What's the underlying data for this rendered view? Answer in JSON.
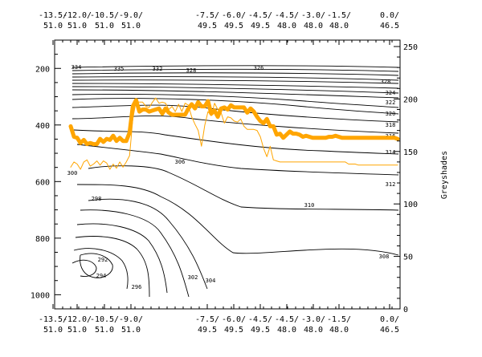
{
  "chart_data": {
    "type": "line",
    "title": "",
    "top_ticks": [
      {
        "lon": "-13.5/",
        "lat": "51.0"
      },
      {
        "lon": "-12.0/",
        "lat": "51.0"
      },
      {
        "lon": "-10.5/",
        "lat": "51.0"
      },
      {
        "lon": "-9.0/",
        "lat": "51.0"
      },
      {
        "lon": "-7.5/",
        "lat": "49.5"
      },
      {
        "lon": "-6.0/",
        "lat": "49.5"
      },
      {
        "lon": "-4.5/",
        "lat": "49.5"
      },
      {
        "lon": "-4.5/",
        "lat": "48.0"
      },
      {
        "lon": "-3.0/",
        "lat": "48.0"
      },
      {
        "lon": "-1.5/",
        "lat": "48.0"
      },
      {
        "lon": "0.0/",
        "lat": "46.5"
      }
    ],
    "bottom_ticks": [
      {
        "lon": "-13.5/",
        "lat": "51.0"
      },
      {
        "lon": "-12.0/",
        "lat": "51.0"
      },
      {
        "lon": "-10.5/",
        "lat": "51.0"
      },
      {
        "lon": "-9.0/",
        "lat": "51.0"
      },
      {
        "lon": "-7.5/",
        "lat": "49.5"
      },
      {
        "lon": "-6.0/",
        "lat": "49.5"
      },
      {
        "lon": "-4.5/",
        "lat": "49.5"
      },
      {
        "lon": "-4.5/",
        "lat": "48.0"
      },
      {
        "lon": "-3.0/",
        "lat": "48.0"
      },
      {
        "lon": "-1.5/",
        "lat": "48.0"
      },
      {
        "lon": "0.0/",
        "lat": "46.5"
      }
    ],
    "left_axis": {
      "ticks": [
        "200",
        "400",
        "600",
        "800",
        "1000"
      ],
      "range": [
        100,
        1050
      ],
      "label": ""
    },
    "right_axis": {
      "ticks": [
        "0",
        "50",
        "100",
        "150",
        "200",
        "250"
      ],
      "range": [
        0,
        250
      ],
      "label": "Greyshades"
    },
    "colors": {
      "thick_line": "#FFA500",
      "thin_line": "#FFA500",
      "contours": "#000000"
    },
    "contour_labels": [
      "292",
      "294",
      "296",
      "298",
      "300",
      "302",
      "304",
      "306",
      "308",
      "310",
      "312",
      "314",
      "316",
      "318",
      "320",
      "322",
      "324",
      "326",
      "328",
      "332",
      "334",
      "335"
    ],
    "series": [
      {
        "style": "thick",
        "x": [
          0,
          1,
          2,
          3,
          4,
          5,
          6,
          7,
          8,
          9,
          10,
          11,
          12,
          13,
          14,
          15,
          16,
          17,
          18,
          19,
          20,
          21,
          22,
          23,
          24,
          25,
          26,
          27,
          28,
          29,
          30,
          31,
          32,
          33,
          34,
          35,
          36,
          37,
          38,
          39,
          40,
          41,
          42,
          43,
          44,
          45,
          46,
          47,
          48,
          49,
          50,
          51,
          52,
          53,
          54,
          55,
          56,
          57,
          58,
          59,
          60,
          61,
          62,
          63,
          64,
          65,
          66,
          67,
          68,
          69,
          70,
          71,
          72,
          73,
          74,
          75,
          76,
          77,
          78,
          79,
          80,
          81,
          82,
          83,
          84,
          85,
          86,
          87,
          88,
          89,
          90,
          91,
          92,
          93,
          94,
          95,
          96,
          97,
          98,
          99,
          100
        ],
        "values": [
          174,
          164,
          163,
          158,
          161,
          157,
          158,
          157,
          157,
          162,
          159,
          162,
          161,
          165,
          160,
          163,
          160,
          160,
          168,
          193,
          199,
          188,
          190,
          190,
          188,
          189,
          190,
          191,
          186,
          191,
          187,
          185,
          185,
          185,
          185,
          185,
          191,
          195,
          191,
          197,
          193,
          193,
          198,
          186,
          189,
          183,
          191,
          192,
          190,
          194,
          192,
          192,
          192,
          192,
          187,
          191,
          188,
          183,
          179,
          177,
          181,
          174,
          174,
          166,
          167,
          163,
          166,
          169,
          167,
          167,
          166,
          164,
          165,
          164,
          163,
          163,
          163,
          163,
          163,
          164,
          164,
          165,
          164,
          163,
          163,
          163,
          163,
          163,
          163,
          163,
          163,
          163,
          163,
          163,
          163,
          163,
          163,
          163,
          163,
          163,
          162
        ]
      },
      {
        "style": "thin",
        "x": [
          0,
          1,
          2,
          3,
          4,
          5,
          6,
          7,
          8,
          9,
          10,
          11,
          12,
          13,
          14,
          15,
          16,
          17,
          18,
          19,
          20,
          21,
          22,
          23,
          24,
          25,
          26,
          27,
          28,
          29,
          30,
          31,
          32,
          33,
          34,
          35,
          36,
          37,
          38,
          39,
          40,
          41,
          42,
          43,
          44,
          45,
          46,
          47,
          48,
          49,
          50,
          51,
          52,
          53,
          54,
          55,
          56,
          57,
          58,
          59,
          60,
          61,
          62,
          63,
          64,
          65,
          66,
          67,
          68,
          69,
          70,
          71,
          72,
          73,
          74,
          75,
          76,
          77,
          78,
          79,
          80,
          81,
          82,
          83,
          84,
          85,
          86,
          87,
          88,
          89,
          90,
          91,
          92,
          93,
          94,
          95,
          96,
          97,
          98,
          99,
          100
        ],
        "values": [
          135,
          140,
          138,
          133,
          140,
          142,
          136,
          138,
          141,
          137,
          141,
          139,
          133,
          138,
          134,
          140,
          135,
          140,
          146,
          181,
          198,
          197,
          197,
          193,
          192,
          197,
          201,
          196,
          197,
          196,
          190,
          193,
          188,
          195,
          188,
          196,
          194,
          183,
          176,
          170,
          155,
          175,
          188,
          184,
          196,
          190,
          187,
          177,
          183,
          182,
          179,
          178,
          181,
          174,
          171,
          171,
          171,
          170,
          164,
          153,
          145,
          155,
          142,
          141,
          140,
          140,
          140,
          140,
          140,
          140,
          140,
          140,
          140,
          140,
          140,
          140,
          140,
          140,
          140,
          140,
          140,
          140,
          140,
          140,
          140,
          138,
          138,
          138,
          137,
          137,
          137,
          137,
          137,
          137,
          137,
          137,
          137,
          137,
          137,
          137,
          137
        ]
      }
    ]
  }
}
